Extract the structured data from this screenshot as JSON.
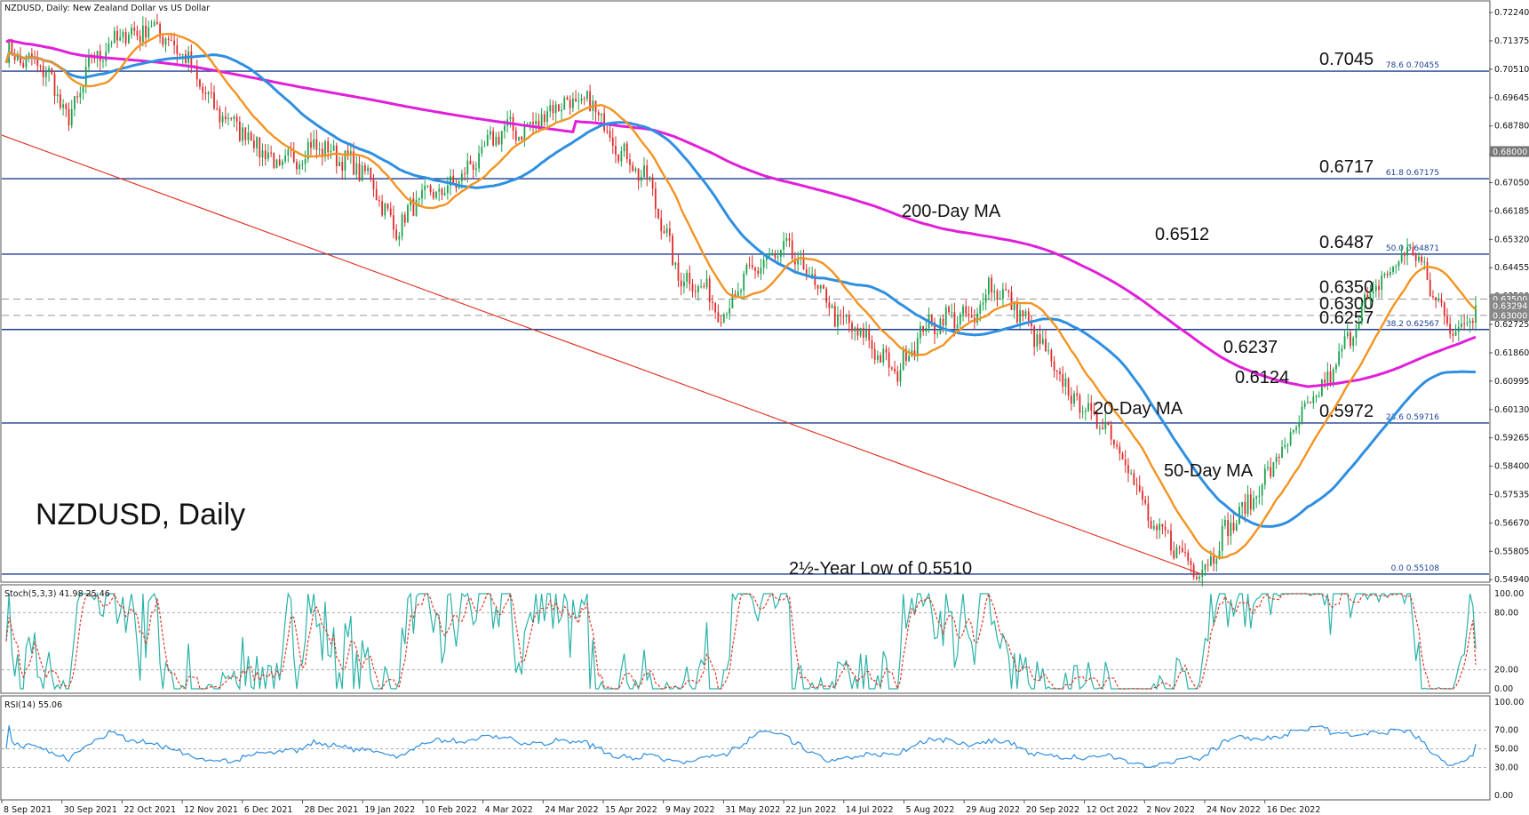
{
  "header": {
    "symbol_label": "NZDUSD, Daily:  New Zealand Dollar vs US Dollar",
    "chart_title": "NZDUSD, Daily"
  },
  "colors": {
    "ma20": "#f39322",
    "ma50": "#2f8fe0",
    "ma200": "#e020d8",
    "hline": "#1c3f94",
    "trend": "#e03a2a",
    "bull": "#1aa24c",
    "bear": "#e02a2a",
    "stoch_main": "#2bb3a8",
    "stoch_signal": "#e03a2a",
    "rsi": "#2f8fe0"
  },
  "chart_data": [
    {
      "type": "candlestick",
      "ylim": [
        0.55,
        0.7235
      ],
      "y_ticks": [
        "0.72240",
        "0.71375",
        "0.70510",
        "0.69645",
        "0.68780",
        "0.67915",
        "0.67050",
        "0.66185",
        "0.65320",
        "0.64455",
        "0.63590",
        "0.62725",
        "0.61860",
        "0.60995",
        "0.60130",
        "0.59265",
        "0.58400",
        "0.57535",
        "0.56670",
        "0.55805",
        "0.54940"
      ],
      "x_ticks": [
        "8 Sep 2021",
        "30 Sep 2021",
        "22 Oct 2021",
        "12 Nov 2021",
        "6 Dec 2021",
        "28 Dec 2021",
        "19 Jan 2022",
        "10 Feb 2022",
        "4 Mar 2022",
        "24 Mar 2022",
        "15 Apr 2022",
        "9 May 2022",
        "31 May 2022",
        "22 Jun 2022",
        "14 Jul 2022",
        "5 Aug 2022",
        "29 Aug 2022",
        "20 Sep 2022",
        "12 Oct 2022",
        "2 Nov 2022",
        "24 Nov 2022",
        "16 Dec 2022"
      ],
      "close_path": [
        [
          0,
          0.71
        ],
        [
          14,
          0.705
        ],
        [
          22,
          0.689
        ],
        [
          30,
          0.708
        ],
        [
          40,
          0.715
        ],
        [
          52,
          0.718
        ],
        [
          62,
          0.71
        ],
        [
          72,
          0.694
        ],
        [
          85,
          0.685
        ],
        [
          96,
          0.675
        ],
        [
          108,
          0.682
        ],
        [
          118,
          0.678
        ],
        [
          128,
          0.672
        ],
        [
          136,
          0.656
        ],
        [
          146,
          0.666
        ],
        [
          156,
          0.669
        ],
        [
          166,
          0.678
        ],
        [
          174,
          0.687
        ],
        [
          182,
          0.686
        ],
        [
          194,
          0.695
        ],
        [
          206,
          0.694
        ],
        [
          216,
          0.68
        ],
        [
          226,
          0.67
        ],
        [
          236,
          0.642
        ],
        [
          244,
          0.639
        ],
        [
          252,
          0.63
        ],
        [
          262,
          0.644
        ],
        [
          274,
          0.65
        ],
        [
          282,
          0.642
        ],
        [
          292,
          0.629
        ],
        [
          302,
          0.623
        ],
        [
          312,
          0.612
        ],
        [
          322,
          0.626
        ],
        [
          332,
          0.63
        ],
        [
          340,
          0.628
        ],
        [
          345,
          0.64
        ],
        [
          354,
          0.633
        ],
        [
          362,
          0.623
        ],
        [
          370,
          0.61
        ],
        [
          380,
          0.6
        ],
        [
          388,
          0.595
        ],
        [
          396,
          0.58
        ],
        [
          402,
          0.565
        ],
        [
          408,
          0.562
        ],
        [
          414,
          0.556
        ],
        [
          420,
          0.552
        ],
        [
          428,
          0.564
        ],
        [
          436,
          0.572
        ],
        [
          446,
          0.586
        ],
        [
          456,
          0.6
        ],
        [
          466,
          0.613
        ],
        [
          476,
          0.632
        ],
        [
          486,
          0.644
        ],
        [
          494,
          0.6512
        ],
        [
          500,
          0.638
        ],
        [
          506,
          0.629
        ],
        [
          510,
          0.6237
        ],
        [
          514,
          0.63
        ],
        [
          516,
          0.633
        ]
      ],
      "n_bars": 517,
      "ma20": {
        "name": "20-Day MA",
        "end_value": 0.633
      },
      "ma50": {
        "name": "50-Day MA",
        "end_value": 0.6124
      },
      "ma200": {
        "name": "200-Day MA",
        "end_value": 0.6237
      },
      "levels": [
        {
          "value": 0.7045,
          "label": "0.7045",
          "fib": "78.6  0.70455",
          "style": "solid"
        },
        {
          "value": 0.6717,
          "label": "0.6717",
          "fib": "61.8  0.67175",
          "style": "solid"
        },
        {
          "value": 0.6487,
          "label": "0.6487",
          "fib": "50.0  0.64871",
          "style": "solid"
        },
        {
          "value": 0.635,
          "label": "0.6350",
          "style": "dashed"
        },
        {
          "value": 0.63,
          "label": "0.6300",
          "style": "dashed"
        },
        {
          "value": 0.6257,
          "label": "0.6257",
          "fib": "38.2  0.62567",
          "style": "solid"
        },
        {
          "value": 0.5972,
          "label": "0.5972",
          "fib": "23.6  0.59716",
          "style": "solid"
        },
        {
          "value": 0.5511,
          "label": "",
          "fib": "0.0  0.55108",
          "style": "solid"
        }
      ],
      "axis_badges": [
        "0.68000",
        "0.63500",
        "0.63294",
        "0.63000"
      ],
      "annotations": {
        "ma200": "200-Day MA",
        "ma20": "20-Day MA",
        "ma50": "50-Day MA",
        "high": "0.6512",
        "pivot": "0.6237",
        "ma50_value": "0.6124",
        "low": "2½-Year Low of 0.5510"
      }
    },
    {
      "type": "line",
      "name": "Stoch(5,3,3) 41.98 25.46",
      "ylim": [
        0,
        100
      ],
      "y_ticks": [
        "100.00",
        "80.00",
        "20.00",
        "0.00"
      ],
      "last_main": 41.98,
      "last_signal": 25.46
    },
    {
      "type": "line",
      "name": "RSI(14) 55.06",
      "ylim": [
        0,
        100
      ],
      "y_ticks": [
        "100.00",
        "70.00",
        "50.00",
        "30.00",
        "0.00"
      ],
      "last_value": 55.06
    }
  ]
}
